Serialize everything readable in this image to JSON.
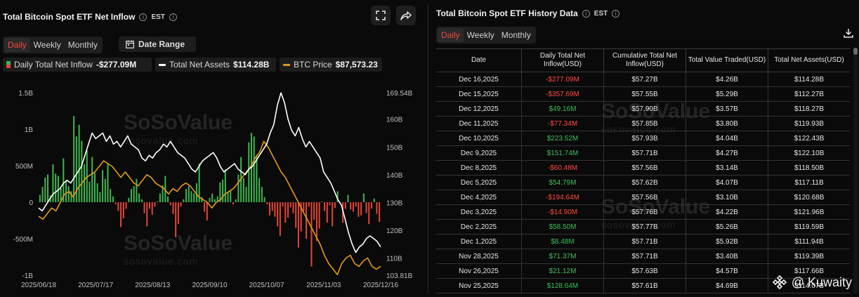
{
  "left": {
    "title": "Total Bitcoin Spot ETF Net Inflow",
    "tz": "EST",
    "periods": [
      "Daily",
      "Weekly",
      "Monthly"
    ],
    "active_period": "Daily",
    "date_range_label": "Date Range",
    "legend": {
      "net": {
        "label": "Daily Total Net Inflow",
        "value": "-$277.09M"
      },
      "assets": {
        "label": "Total Net Assets",
        "value": "$114.28B"
      },
      "btc": {
        "label": "BTC Price",
        "value": "$87,573.23"
      }
    },
    "watermark": {
      "brand": "SoSoValue",
      "url": "sosovalue.com"
    }
  },
  "chart_data": {
    "type": "bar",
    "title": "Total Bitcoin Spot ETF Net Inflow",
    "left_axis": {
      "ticks": [
        "1.5B",
        "1B",
        "500M",
        "0",
        "-500M",
        "-1B"
      ],
      "values": [
        1500,
        1000,
        500,
        0,
        -500,
        -1000
      ],
      "unit": "M USD"
    },
    "right_axis": {
      "ticks": [
        "169.54B",
        "160B",
        "150B",
        "140B",
        "130B",
        "120B",
        "110B",
        "103.81B"
      ],
      "values": [
        169.54,
        160,
        150,
        140,
        130,
        120,
        110,
        103.81
      ],
      "unit": "B USD"
    },
    "x_ticks": [
      "2025/06/18",
      "2025/07/17",
      "2025/08/13",
      "2025/09/10",
      "2025/10/07",
      "2025/11/03",
      "2025/12/16"
    ],
    "series": [
      {
        "name": "Daily Total Net Inflow",
        "kind": "bar",
        "unit": "M USD",
        "colors": {
          "pos": "#3fb34f",
          "neg": "#e0443a"
        },
        "values": [
          100,
          210,
          340,
          380,
          90,
          520,
          390,
          360,
          190,
          600,
          300,
          220,
          150,
          1180,
          900,
          1060,
          840,
          520,
          710,
          280,
          620,
          400,
          260,
          140,
          440,
          320,
          520,
          180,
          80,
          -30,
          -120,
          -340,
          -220,
          -90,
          60,
          180,
          220,
          320,
          120,
          40,
          -150,
          -330,
          -90,
          -170,
          -60,
          10,
          120,
          230,
          360,
          80,
          -40,
          -160,
          -480,
          -300,
          -60,
          40,
          180,
          220,
          150,
          120,
          260,
          530,
          70,
          -130,
          -250,
          60,
          120,
          40,
          80,
          270,
          310,
          450,
          140,
          160,
          -30,
          40,
          380,
          620,
          330,
          210,
          820,
          950,
          900,
          650,
          330,
          210,
          70,
          -30,
          -180,
          -120,
          -200,
          -330,
          -460,
          -60,
          -280,
          -210,
          -70,
          -150,
          -350,
          -620,
          -400,
          -120,
          -500,
          -60,
          -880,
          -240,
          -530,
          -360,
          10,
          -120,
          -280,
          -40,
          -330,
          -80,
          150,
          -10,
          -280,
          -90,
          100,
          -100,
          -130,
          -60,
          -200,
          -180,
          120,
          -150,
          -300,
          -90,
          50,
          -160,
          -270
        ]
      },
      {
        "name": "Total Net Assets",
        "kind": "line",
        "unit": "B USD",
        "color": "#ffffff",
        "values": [
          128,
          127,
          129,
          131,
          133,
          134,
          135,
          137,
          138,
          137,
          139,
          141,
          143,
          147,
          151,
          155,
          153,
          154,
          155,
          152,
          154,
          151,
          152,
          150,
          152,
          154,
          151,
          150,
          149,
          146,
          145,
          147,
          146,
          148,
          149,
          151,
          150,
          152,
          150,
          148,
          147,
          146,
          144,
          142,
          141,
          143,
          145,
          146,
          147,
          148,
          146,
          143,
          141,
          142,
          143,
          144,
          142,
          141,
          140,
          142,
          143,
          145,
          147,
          149,
          151,
          155,
          158,
          165,
          169.5,
          166,
          160,
          156,
          154,
          157,
          153,
          150,
          152,
          150,
          148,
          146,
          141,
          139,
          137,
          134,
          131,
          129,
          124,
          119,
          115,
          112,
          114,
          115,
          117,
          118,
          117,
          116,
          114
        ]
      },
      {
        "name": "BTC Price",
        "kind": "line",
        "unit": "USD",
        "color": "#e39a1c",
        "values": [
          125,
          124,
          126,
          128,
          127,
          130,
          133,
          134,
          132,
          135,
          137,
          139,
          140,
          141,
          143,
          145,
          144,
          143,
          141,
          139,
          141,
          139,
          137,
          136,
          138,
          140,
          139,
          137,
          136,
          135,
          133,
          135,
          134,
          136,
          137,
          136,
          134,
          132,
          131,
          130,
          128,
          130,
          131,
          133,
          134,
          135,
          137,
          139,
          141,
          143,
          146,
          148,
          152,
          150,
          147,
          144,
          141,
          139,
          136,
          133,
          130,
          127,
          124,
          121,
          118,
          115,
          111,
          108,
          106,
          104,
          108,
          110,
          111,
          108,
          107,
          109,
          110,
          107,
          106,
          107
        ]
      }
    ]
  },
  "right": {
    "title": "Total Bitcoin Spot ETF History Data",
    "tz": "EST",
    "periods": [
      "Daily",
      "Weekly",
      "Monthly"
    ],
    "active_period": "Daily",
    "columns": [
      "Date",
      "Daily Total Net Inflow(USD)",
      "Cumulative Total Net Inflow(USD)",
      "Total Value Traded(USD)",
      "Total Net Assets(USD)"
    ],
    "rows": [
      {
        "date": "Dec 16,2025",
        "inflow": "-$277.09M",
        "sign": "neg",
        "cum": "$57.27B",
        "traded": "$4.26B",
        "assets": "$114.28B"
      },
      {
        "date": "Dec 15,2025",
        "inflow": "-$357.69M",
        "sign": "neg",
        "cum": "$57.55B",
        "traded": "$5.29B",
        "assets": "$112.27B"
      },
      {
        "date": "Dec 12,2025",
        "inflow": "$49.16M",
        "sign": "pos",
        "cum": "$57.90B",
        "traded": "$3.57B",
        "assets": "$118.27B"
      },
      {
        "date": "Dec 11,2025",
        "inflow": "-$77.34M",
        "sign": "neg",
        "cum": "$57.85B",
        "traded": "$3.80B",
        "assets": "$119.93B"
      },
      {
        "date": "Dec 10,2025",
        "inflow": "$223.52M",
        "sign": "pos",
        "cum": "$57.93B",
        "traded": "$4.04B",
        "assets": "$122.43B"
      },
      {
        "date": "Dec 9,2025",
        "inflow": "$151.74M",
        "sign": "pos",
        "cum": "$57.71B",
        "traded": "$4.27B",
        "assets": "$122.10B"
      },
      {
        "date": "Dec 8,2025",
        "inflow": "-$60.48M",
        "sign": "neg",
        "cum": "$57.56B",
        "traded": "$3.14B",
        "assets": "$118.50B"
      },
      {
        "date": "Dec 5,2025",
        "inflow": "$54.79M",
        "sign": "pos",
        "cum": "$57.62B",
        "traded": "$4.07B",
        "assets": "$117.11B"
      },
      {
        "date": "Dec 4,2025",
        "inflow": "-$194.64M",
        "sign": "neg",
        "cum": "$57.56B",
        "traded": "$3.10B",
        "assets": "$120.68B"
      },
      {
        "date": "Dec 3,2025",
        "inflow": "-$14.90M",
        "sign": "neg",
        "cum": "$57.76B",
        "traded": "$4.22B",
        "assets": "$121.96B"
      },
      {
        "date": "Dec 2,2025",
        "inflow": "$58.50M",
        "sign": "pos",
        "cum": "$57.77B",
        "traded": "$5.26B",
        "assets": "$119.59B"
      },
      {
        "date": "Dec 1,2025",
        "inflow": "$8.48M",
        "sign": "pos",
        "cum": "$57.71B",
        "traded": "$5.92B",
        "assets": "$111.94B"
      },
      {
        "date": "Nov 28,2025",
        "inflow": "$71.37M",
        "sign": "pos",
        "cum": "$57.71B",
        "traded": "$3.40B",
        "assets": "$119.39B"
      },
      {
        "date": "Nov 26,2025",
        "inflow": "$21.12M",
        "sign": "pos",
        "cum": "$57.63B",
        "traded": "$4.57B",
        "assets": "$117.66B"
      },
      {
        "date": "Nov 25,2025",
        "inflow": "$128.64M",
        "sign": "pos",
        "cum": "$57.61B",
        "traded": "$4.69B",
        "assets": "$114.07B"
      }
    ]
  },
  "overlay": {
    "binance_user": "@ Kuwaity"
  }
}
